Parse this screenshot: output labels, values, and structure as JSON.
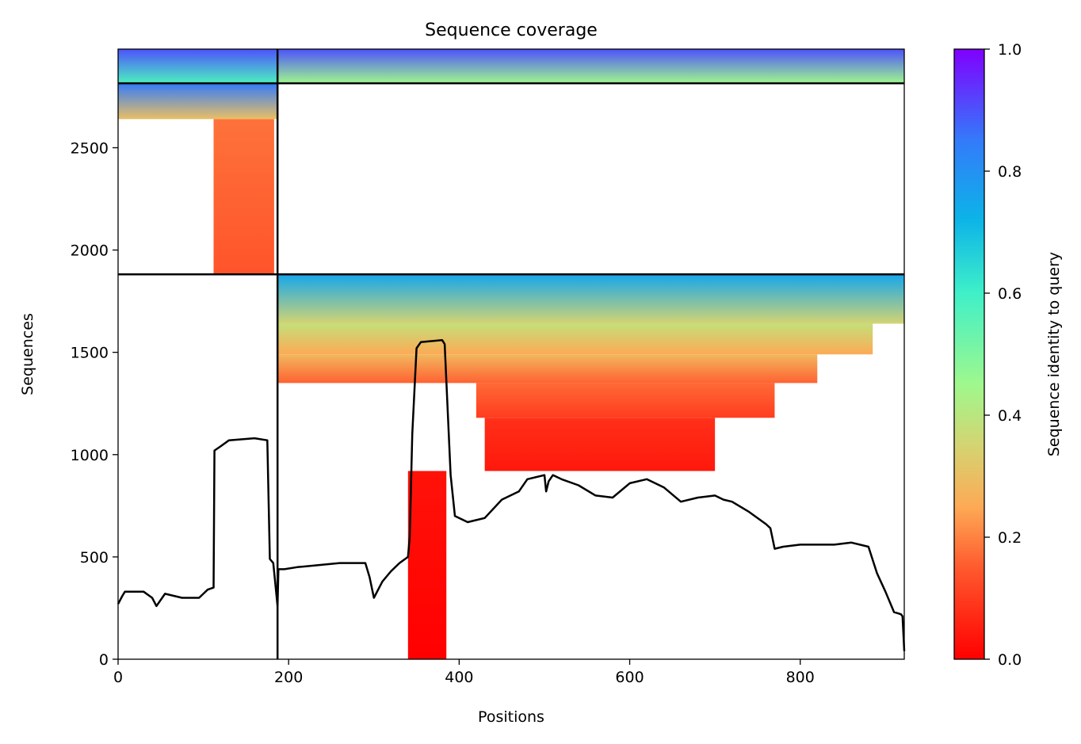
{
  "chart_data": {
    "type": "heatmap",
    "title": "Sequence coverage",
    "xlabel": "Positions",
    "ylabel": "Sequences",
    "xlim": [
      0,
      922
    ],
    "ylim": [
      0,
      2982
    ],
    "x_ticks": [
      0,
      200,
      400,
      600,
      800
    ],
    "y_ticks": [
      0,
      500,
      1000,
      1500,
      2000,
      2500
    ],
    "grid": false,
    "colorbar": {
      "label": "Sequence identity to query",
      "range": [
        0,
        1
      ],
      "ticks": [
        "0.0",
        "0.2",
        "0.4",
        "0.6",
        "0.8",
        "1.0"
      ],
      "stops": [
        {
          "v": 0.0,
          "color": "#ff0000"
        },
        {
          "v": 0.15,
          "color": "#ff5a2e"
        },
        {
          "v": 0.25,
          "color": "#fdaa55"
        },
        {
          "v": 0.35,
          "color": "#d4d472"
        },
        {
          "v": 0.45,
          "color": "#9ff88d"
        },
        {
          "v": 0.6,
          "color": "#3ff0c8"
        },
        {
          "v": 0.72,
          "color": "#0cb4e8"
        },
        {
          "v": 0.85,
          "color": "#337bfa"
        },
        {
          "v": 1.0,
          "color": "#8000ff"
        }
      ]
    },
    "chain_boundaries_x": [
      187
    ],
    "block_boundaries_y": [
      1881,
      2815
    ],
    "coverage_blocks": [
      {
        "x0": 0,
        "x1": 187,
        "y0": 2815,
        "y1": 2982,
        "id_bottom": 0.58,
        "id_top": 0.9
      },
      {
        "x0": 188,
        "x1": 922,
        "y0": 2815,
        "y1": 2982,
        "id_bottom": 0.45,
        "id_top": 0.9
      },
      {
        "x0": 0,
        "x1": 187,
        "y0": 2640,
        "y1": 2815,
        "id_bottom": 0.3,
        "id_top": 0.85
      },
      {
        "x0": 112,
        "x1": 183,
        "y0": 1885,
        "y1": 2640,
        "id_bottom": 0.14,
        "id_top": 0.18
      },
      {
        "x0": 188,
        "x1": 922,
        "y0": 1640,
        "y1": 1881,
        "id_bottom": 0.35,
        "id_top": 0.75
      },
      {
        "x0": 188,
        "x1": 885,
        "y0": 1490,
        "y1": 1640,
        "id_bottom": 0.25,
        "id_top": 0.38
      },
      {
        "x0": 188,
        "x1": 820,
        "y0": 1350,
        "y1": 1490,
        "id_bottom": 0.16,
        "id_top": 0.28
      },
      {
        "x0": 420,
        "x1": 770,
        "y0": 1180,
        "y1": 1350,
        "id_bottom": 0.1,
        "id_top": 0.17
      },
      {
        "x0": 430,
        "x1": 700,
        "y0": 920,
        "y1": 1180,
        "id_bottom": 0.04,
        "id_top": 0.08
      },
      {
        "x0": 340,
        "x1": 385,
        "y0": 0,
        "y1": 920,
        "id_bottom": 0.0,
        "id_top": 0.03
      }
    ],
    "coverage_line": {
      "x": [
        0,
        5,
        8,
        30,
        40,
        45,
        55,
        75,
        95,
        105,
        112,
        113,
        120,
        130,
        160,
        175,
        178,
        182,
        187,
        188,
        195,
        210,
        260,
        290,
        295,
        300,
        310,
        320,
        330,
        340,
        342,
        345,
        350,
        355,
        380,
        383,
        390,
        395,
        405,
        410,
        420,
        430,
        450,
        470,
        480,
        500,
        502,
        505,
        510,
        520,
        540,
        560,
        580,
        600,
        620,
        640,
        660,
        680,
        700,
        710,
        720,
        740,
        760,
        765,
        770,
        780,
        800,
        840,
        860,
        880,
        890,
        900,
        910,
        918,
        920,
        922
      ],
      "y": [
        270,
        310,
        330,
        330,
        300,
        260,
        320,
        300,
        300,
        340,
        350,
        1020,
        1040,
        1070,
        1080,
        1070,
        490,
        470,
        260,
        440,
        440,
        450,
        470,
        470,
        400,
        300,
        380,
        430,
        470,
        500,
        600,
        1100,
        1520,
        1550,
        1560,
        1540,
        900,
        700,
        680,
        670,
        680,
        690,
        780,
        820,
        880,
        900,
        820,
        870,
        900,
        880,
        850,
        800,
        790,
        860,
        880,
        840,
        770,
        790,
        800,
        780,
        770,
        720,
        660,
        640,
        540,
        550,
        560,
        560,
        570,
        550,
        420,
        330,
        230,
        220,
        210,
        40
      ]
    }
  }
}
